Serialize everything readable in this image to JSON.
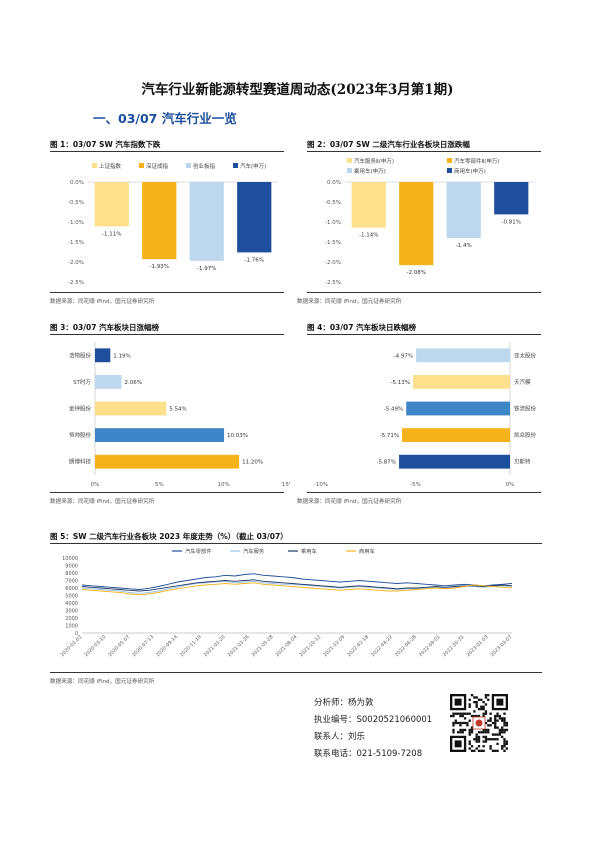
{
  "title": "汽车行业新能源转型赛道周动态(2023年3月第1期)",
  "section": "一、03/07 汽车行业一览",
  "source": "数据来源：同花顺 iFind，国元证券研究所",
  "fig1": {
    "title": "图 1：03/07 SW 汽车指数下跌",
    "chart_data": {
      "type": "bar",
      "categories": [
        "上证指数",
        "深证成指",
        "创业板指",
        "汽车(申万)"
      ],
      "values": [
        -1.11,
        -1.93,
        -1.97,
        -1.76
      ],
      "labels": [
        "-1.11%",
        "-1.93%",
        "-1.97%",
        "-1.76%"
      ],
      "colors": [
        "#fde08c",
        "#f6b21b",
        "#bdd7ee",
        "#1f4e9c"
      ],
      "ylim": [
        -2.5,
        0
      ],
      "yticks": [
        "0.0%",
        "-0.5%",
        "-1.0%",
        "-1.5%",
        "-2.0%",
        "-2.5%"
      ]
    }
  },
  "fig2": {
    "title": "图 2：03/07 SW 二级汽车行业各板块日涨跌幅",
    "chart_data": {
      "type": "bar",
      "categories": [
        "汽车服务Ⅱ(申万)",
        "汽车零部件Ⅱ(申万)",
        "乘用车(申万)",
        "商用车(申万)"
      ],
      "values": [
        -1.14,
        -2.08,
        -1.4,
        -0.81
      ],
      "labels": [
        "-1.14%",
        "-2.08%",
        "-1.4%",
        "-0.81%"
      ],
      "colors": [
        "#fde08c",
        "#f6b21b",
        "#bdd7ee",
        "#1f4e9c"
      ],
      "ylim": [
        -2.5,
        0
      ],
      "yticks": [
        "0.0%",
        "-0.5%",
        "-1.0%",
        "-1.5%",
        "-2.0%",
        "-2.5%"
      ]
    }
  },
  "fig3": {
    "title": "图 3：03/07 汽车板块日涨幅榜",
    "chart_data": {
      "type": "bar",
      "orientation": "horizontal",
      "categories": [
        "浩物股份",
        "ST时万",
        "金钟股份",
        "恒帅股份",
        "朗博科技"
      ],
      "values": [
        1.19,
        2.06,
        5.54,
        10.03,
        11.2
      ],
      "labels": [
        "1.19%",
        "2.06%",
        "5.54%",
        "10.03%",
        "11.20%"
      ],
      "colors": [
        "#1f4e9c",
        "#bdd7ee",
        "#fde08c",
        "#3d85c6",
        "#f6b21b"
      ],
      "xlim": [
        0,
        15
      ],
      "xticks": [
        "0%",
        "5%",
        "10%",
        "15%"
      ]
    }
  },
  "fig4": {
    "title": "图 4：03/07 汽车板块日跌幅榜",
    "chart_data": {
      "type": "bar",
      "orientation": "horizontal",
      "categories": [
        "亚太股份",
        "天汽模",
        "铁流股份",
        "凯众股份",
        "贝斯特"
      ],
      "values": [
        -4.97,
        -5.13,
        -5.49,
        -5.71,
        -5.87
      ],
      "labels": [
        "-4.97%",
        "-5.13%",
        "-5.49%",
        "-5.71%",
        "-5.87%"
      ],
      "colors": [
        "#bdd7ee",
        "#fde08c",
        "#3d85c6",
        "#f6b21b",
        "#1f4e9c"
      ],
      "xlim": [
        -10,
        0
      ],
      "xticks": [
        "-10%",
        "-5%",
        "0%"
      ]
    }
  },
  "fig5": {
    "title": "图 5：SW 二级汽车行业各板块 2023 年度走势（%）（截止 03/07）",
    "chart_data": {
      "type": "line",
      "series": [
        {
          "name": "汽车零部件",
          "color": "#1f4e9c",
          "values": [
            3200,
            3150,
            3100,
            3050,
            3000,
            2950,
            2900,
            2980,
            3100,
            3250,
            3400,
            3500,
            3600,
            3700,
            3750,
            3850,
            3800,
            3900,
            3950,
            3850,
            3800,
            3750,
            3700,
            3600,
            3550,
            3500,
            3450,
            3400,
            3450,
            3500,
            3450,
            3400,
            3350,
            3300,
            3350,
            3300,
            3250,
            3200,
            3150,
            3200,
            3250,
            3200,
            3150,
            3200,
            3250,
            3300
          ]
        },
        {
          "name": "汽车服务",
          "color": "#9dc3e6",
          "values": [
            3000,
            2950,
            2900,
            2850,
            2800,
            2700,
            2650,
            2700,
            2800,
            2950,
            3050,
            3200,
            3300,
            3350,
            3400,
            3450,
            3350,
            3400,
            3450,
            3350,
            3300,
            3250,
            3250,
            3200,
            3150,
            3100,
            3050,
            3000,
            3050,
            3100,
            3050,
            3000,
            2950,
            2900,
            2950,
            2950,
            3000,
            3050,
            3000,
            3050,
            3100,
            3100,
            3050,
            3100,
            3150,
            3100
          ]
        },
        {
          "name": "乘用车",
          "color": "#1f3864",
          "values": [
            3100,
            3050,
            3000,
            2950,
            2900,
            2850,
            2800,
            2850,
            2950,
            3050,
            3150,
            3250,
            3350,
            3400,
            3450,
            3500,
            3450,
            3500,
            3550,
            3450,
            3400,
            3350,
            3300,
            3250,
            3200,
            3150,
            3100,
            3050,
            3100,
            3150,
            3100,
            3050,
            3000,
            2950,
            3000,
            3000,
            3050,
            3100,
            3050,
            3100,
            3150,
            3150,
            3100,
            3150,
            3200,
            3150
          ]
        },
        {
          "name": "商用车",
          "color": "#f6b21b",
          "values": [
            2900,
            2850,
            2800,
            2750,
            2700,
            2600,
            2550,
            2600,
            2700,
            2850,
            2950,
            3050,
            3150,
            3200,
            3250,
            3300,
            3250,
            3300,
            3350,
            3250,
            3200,
            3150,
            3100,
            3050,
            3000,
            2950,
            2900,
            2850,
            2900,
            2950,
            2900,
            2850,
            2800,
            2800,
            2850,
            2900,
            2950,
            3000,
            2950,
            3000,
            3100,
            3200,
            3150,
            3100,
            3050,
            3000
          ]
        }
      ],
      "yticks": [
        "10000",
        "9000",
        "8000",
        "7000",
        "6000",
        "5000",
        "4000",
        "3000",
        "2000",
        "1000",
        "0"
      ],
      "ylim": [
        0,
        10000
      ],
      "xticks": [
        "2020-01-02",
        "2020-05-07",
        "2020-09-14",
        "2021-01-20",
        "2021-05-28",
        "2021-10-12",
        "2022-02-18",
        "2022-06-28",
        "2022-10-31",
        "2023-03-07",
        "2020-03-10",
        "2020-07-13",
        "2020-11-19",
        "2021-03-26",
        "2021-08-04",
        "2021-12-09",
        "2022-04-22",
        "2022-09-01",
        "2023-01-03"
      ],
      "xtick_labels_shown": [
        "2020-01-02",
        "2020-03-10",
        "2020-05-07",
        "2020-07-13",
        "2020-09-14",
        "2020-11-19",
        "2021-01-20",
        "2021-03-26",
        "2021-05-28",
        "2021-08-04",
        "2021-10-12",
        "2021-12-09",
        "2022-02-18",
        "2022-04-22",
        "2022-06-28",
        "2022-09-01",
        "2022-10-31",
        "2023-01-03",
        "2023-03-07"
      ]
    }
  },
  "analyst": {
    "name": "分析师：杨为敦",
    "license": "执业编号：S0020521060001",
    "contact": "联系人：刘乐",
    "phone": "联系电话：021-5109-7208"
  }
}
